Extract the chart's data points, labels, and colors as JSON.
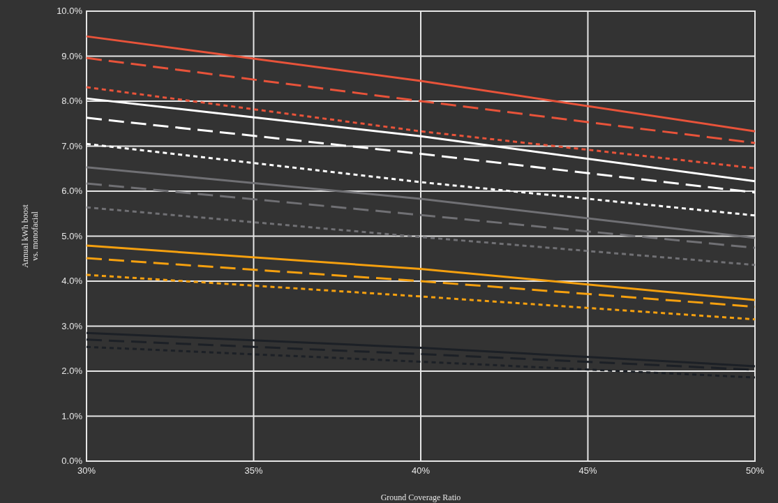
{
  "chart_data": {
    "type": "line",
    "xlabel": "Ground Coverage Ratio",
    "ylabel": "Annual kWh boost\nvs. monofacial",
    "x": [
      30,
      40,
      50
    ],
    "xlim": [
      30,
      50
    ],
    "xticks": [
      {
        "value": 30,
        "label": "30%"
      },
      {
        "value": 35,
        "label": "35%"
      },
      {
        "value": 40,
        "label": "40%"
      },
      {
        "value": 45,
        "label": "45%"
      },
      {
        "value": 50,
        "label": "50%"
      }
    ],
    "ylim": [
      0,
      10
    ],
    "yticks": [
      {
        "value": 0,
        "label": "0.0%"
      },
      {
        "value": 1,
        "label": "1.0%"
      },
      {
        "value": 2,
        "label": "2.0%"
      },
      {
        "value": 3,
        "label": "3.0%"
      },
      {
        "value": 4,
        "label": "4.0%"
      },
      {
        "value": 5,
        "label": "5.0%"
      },
      {
        "value": 6,
        "label": "6.0%"
      },
      {
        "value": 7,
        "label": "7.0%"
      },
      {
        "value": 8,
        "label": "8.0%"
      },
      {
        "value": 9,
        "label": "9.0%"
      },
      {
        "value": 10,
        "label": "10.0%"
      }
    ],
    "grid": true,
    "series": [
      {
        "color": "#e8533a",
        "line_style": "solid",
        "values": [
          9.44,
          8.45,
          7.33
        ]
      },
      {
        "color": "#e8533a",
        "line_style": "dashed",
        "values": [
          8.96,
          8.0,
          7.07
        ]
      },
      {
        "color": "#e8533a",
        "line_style": "dotted",
        "values": [
          8.31,
          7.33,
          6.51
        ]
      },
      {
        "color": "#ffffff",
        "line_style": "solid",
        "values": [
          8.06,
          7.22,
          6.22
        ]
      },
      {
        "color": "#ffffff",
        "line_style": "dashed",
        "values": [
          7.63,
          6.83,
          5.97
        ]
      },
      {
        "color": "#ffffff",
        "line_style": "dotted",
        "values": [
          7.05,
          6.2,
          5.46
        ]
      },
      {
        "color": "#707074",
        "line_style": "solid",
        "values": [
          6.53,
          5.83,
          4.96
        ]
      },
      {
        "color": "#707074",
        "line_style": "dashed",
        "values": [
          6.17,
          5.47,
          4.74
        ]
      },
      {
        "color": "#707074",
        "line_style": "dotted",
        "values": [
          5.64,
          4.98,
          4.36
        ]
      },
      {
        "color": "#f5a00f",
        "line_style": "solid",
        "values": [
          4.79,
          4.27,
          3.58
        ]
      },
      {
        "color": "#f5a00f",
        "line_style": "dashed",
        "values": [
          4.51,
          4.0,
          3.43
        ]
      },
      {
        "color": "#f5a00f",
        "line_style": "dotted",
        "values": [
          4.14,
          3.66,
          3.15
        ]
      },
      {
        "color": "#1c2026",
        "line_style": "solid",
        "values": [
          2.85,
          2.52,
          2.11
        ]
      },
      {
        "color": "#1c2026",
        "line_style": "dashed",
        "values": [
          2.7,
          2.38,
          2.03
        ]
      },
      {
        "color": "#1c2026",
        "line_style": "dotted",
        "values": [
          2.54,
          2.21,
          1.86
        ]
      }
    ]
  }
}
